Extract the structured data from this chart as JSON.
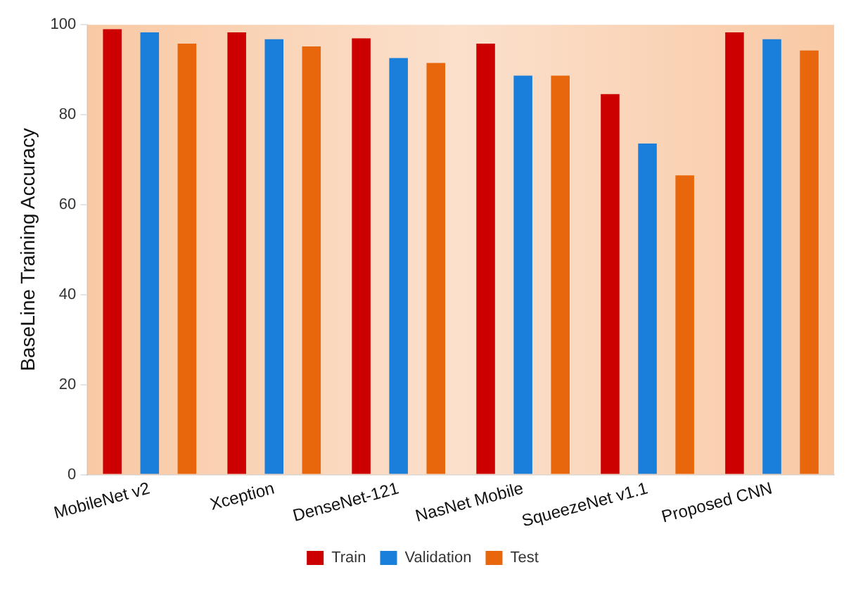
{
  "chart_data": {
    "type": "bar",
    "ylabel": "BaseLine Training Accuracy",
    "categories": [
      "MobileNet v2",
      "Xception",
      "DenseNet-121",
      "NasNet Mobile",
      "SqueezeNet v1.1",
      "Proposed CNN"
    ],
    "series": [
      {
        "name": "Train",
        "color": "#cc0000",
        "values": [
          99.0,
          98.3,
          97.0,
          95.8,
          84.6,
          98.3
        ]
      },
      {
        "name": "Validation",
        "color": "#1a7fdb",
        "values": [
          98.3,
          96.8,
          92.6,
          88.7,
          73.6,
          96.8
        ]
      },
      {
        "name": "Test",
        "color": "#e8670c",
        "values": [
          95.8,
          95.2,
          91.5,
          88.7,
          66.5,
          94.3
        ]
      }
    ],
    "ylim": [
      0,
      100
    ],
    "yticks": [
      0,
      20,
      40,
      60,
      80,
      100
    ],
    "grid": false,
    "legend": "bottom"
  }
}
